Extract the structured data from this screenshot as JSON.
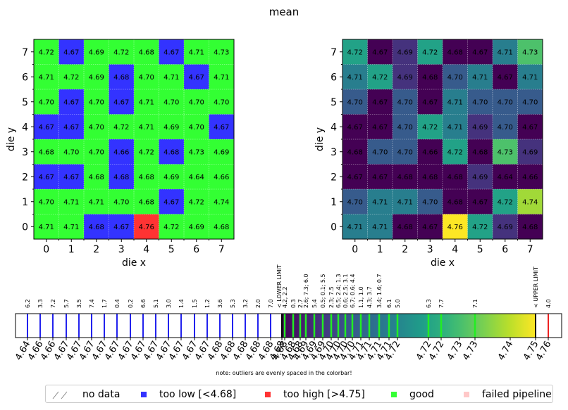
{
  "figure": {
    "title": "mean"
  },
  "chart_data": [
    {
      "type": "heatmap",
      "name": "status map",
      "xlabel": "die x",
      "ylabel": "die y",
      "x": [
        0,
        1,
        2,
        3,
        4,
        5,
        6,
        7
      ],
      "y": [
        0,
        1,
        2,
        3,
        4,
        5,
        6,
        7
      ],
      "values_by_row_top_to_bottom": {
        "7": [
          4.72,
          4.67,
          4.69,
          4.72,
          4.68,
          4.67,
          4.71,
          4.73
        ],
        "6": [
          4.71,
          4.72,
          4.69,
          4.68,
          4.7,
          4.71,
          4.67,
          4.71
        ],
        "5": [
          4.7,
          4.67,
          4.7,
          4.67,
          4.71,
          4.7,
          4.7,
          4.7
        ],
        "4": [
          4.67,
          4.67,
          4.7,
          4.72,
          4.71,
          4.69,
          4.7,
          4.67
        ],
        "3": [
          4.68,
          4.7,
          4.7,
          4.66,
          4.72,
          4.68,
          4.73,
          4.69
        ],
        "2": [
          4.67,
          4.67,
          4.68,
          4.68,
          4.68,
          4.69,
          4.64,
          4.66
        ],
        "1": [
          4.7,
          4.71,
          4.71,
          4.7,
          4.68,
          4.67,
          4.72,
          4.74
        ],
        "0": [
          4.71,
          4.71,
          4.68,
          4.67,
          4.76,
          4.72,
          4.69,
          4.68
        ]
      },
      "status_by_row_top_to_bottom": {
        "7": [
          "good",
          "low",
          "good",
          "good",
          "good",
          "low",
          "good",
          "good"
        ],
        "6": [
          "good",
          "good",
          "good",
          "low",
          "good",
          "good",
          "low",
          "good"
        ],
        "5": [
          "good",
          "low",
          "good",
          "low",
          "good",
          "good",
          "good",
          "good"
        ],
        "4": [
          "low",
          "low",
          "good",
          "good",
          "good",
          "good",
          "good",
          "low"
        ],
        "3": [
          "good",
          "good",
          "good",
          "low",
          "good",
          "low",
          "good",
          "good"
        ],
        "2": [
          "low",
          "low",
          "good",
          "low",
          "good",
          "good",
          "good",
          "good"
        ],
        "1": [
          "good",
          "good",
          "good",
          "good",
          "good",
          "low",
          "good",
          "good"
        ],
        "0": [
          "good",
          "good",
          "low",
          "low",
          "high",
          "good",
          "good",
          "good"
        ]
      },
      "colors": {
        "good": "#33ff33",
        "low": "#3333ff",
        "high": "#ff3333"
      }
    },
    {
      "type": "heatmap",
      "name": "colormap",
      "xlabel": "die x",
      "ylabel": "die y",
      "x": [
        0,
        1,
        2,
        3,
        4,
        5,
        6,
        7
      ],
      "y": [
        0,
        1,
        2,
        3,
        4,
        5,
        6,
        7
      ],
      "colormap": "viridis",
      "vmin": 4.68,
      "vmax": 4.75
    },
    {
      "type": "colorbar",
      "range": [
        4.68,
        4.75
      ],
      "lower_limit_label": "< LOWER LIMIT",
      "upper_limit_label": "< UPPER LIMIT",
      "low_outliers": [
        {
          "label": "6.2",
          "value": "4.64"
        },
        {
          "label": "3.3",
          "value": "4.66"
        },
        {
          "label": "7.2",
          "value": "4.66"
        },
        {
          "label": "5.7",
          "value": "4.67"
        },
        {
          "label": "3.5",
          "value": "4.67"
        },
        {
          "label": "7.4",
          "value": "4.67"
        },
        {
          "label": "1.7",
          "value": "4.67"
        },
        {
          "label": "0.4",
          "value": "4.67"
        },
        {
          "label": "0.2",
          "value": "4.67"
        },
        {
          "label": "6.6",
          "value": "4.67"
        },
        {
          "label": "5.1",
          "value": "4.67"
        },
        {
          "label": "3.0",
          "value": "4.67"
        },
        {
          "label": "1.4",
          "value": "4.67"
        },
        {
          "label": "1.5",
          "value": "4.67"
        },
        {
          "label": "1.2",
          "value": "4.67"
        },
        {
          "label": "3.6",
          "value": "4.68"
        },
        {
          "label": "5.3",
          "value": "4.68"
        },
        {
          "label": "3.2",
          "value": "4.68"
        },
        {
          "label": "2.0",
          "value": "4.68"
        },
        {
          "label": "7.0",
          "value": "4.68"
        }
      ],
      "in_range": [
        {
          "label": "4.2, 2.2",
          "value": "4.68"
        },
        {
          "label": "0.3",
          "value": "4.68"
        },
        {
          "label": "2.7",
          "value": "4.69"
        },
        {
          "label": "2.6; 7.3; 6.0",
          "value": "4.69"
        },
        {
          "label": "5.4",
          "value": "4.69"
        },
        {
          "label": "0.5; 0.1; 5.5",
          "value": "4.70"
        },
        {
          "label": "2.3; 7.5",
          "value": "4.70"
        },
        {
          "label": "6.5; 2.4; 1.3",
          "value": "4.70"
        },
        {
          "label": "0.6; 2.5; 3.1",
          "value": "4.70"
        },
        {
          "label": "6.7; 0.6; 4.4",
          "value": "4.71"
        },
        {
          "label": "1.1, 1.0",
          "value": "4.71"
        },
        {
          "label": "4.3; 3.7",
          "value": "4.71"
        },
        {
          "label": "3.4; 1.6; 0.7",
          "value": "4.72"
        },
        {
          "label": "6.1",
          "value": "4.72"
        },
        {
          "label": "5.0",
          "value": "4.72"
        },
        {
          "label": "6.3",
          "value": "4.73"
        },
        {
          "label": "7.7",
          "value": "4.73"
        },
        {
          "label": "7.1",
          "value": "4.74"
        }
      ],
      "high_outliers": [
        {
          "label": "4.0",
          "value": "4.76"
        }
      ],
      "axis_labels": [
        "4.64",
        "4.66",
        "4.66",
        "4.67",
        "4.67",
        "4.67",
        "4.67",
        "4.67",
        "4.67",
        "4.67",
        "4.67",
        "4.67",
        "4.67",
        "4.67",
        "4.67",
        "4.68",
        "4.68",
        "4.68",
        "4.68",
        "4.68",
        "4.68",
        "4.68",
        "4.68",
        "4.68",
        "4.69",
        "4.69",
        "4.69",
        "4.70",
        "4.70",
        "4.70",
        "4.70",
        "4.71",
        "4.71",
        "4.71",
        "4.71",
        "4.72",
        "4.72",
        "4.72",
        "4.73",
        "4.73",
        "4.74",
        "4.75",
        "4.76"
      ]
    }
  ],
  "colorbar_note": "note: outliers are evenly spaced in the colorbar!",
  "legend": {
    "items": [
      {
        "label": "no data",
        "kind": "hatch"
      },
      {
        "label": "too low [<4.68]",
        "color": "#3333ff"
      },
      {
        "label": "too high [>4.75]",
        "color": "#ff3333"
      },
      {
        "label": "good",
        "color": "#33ff33"
      },
      {
        "label": "failed pipeline",
        "color": "#ffc8c8"
      }
    ]
  }
}
